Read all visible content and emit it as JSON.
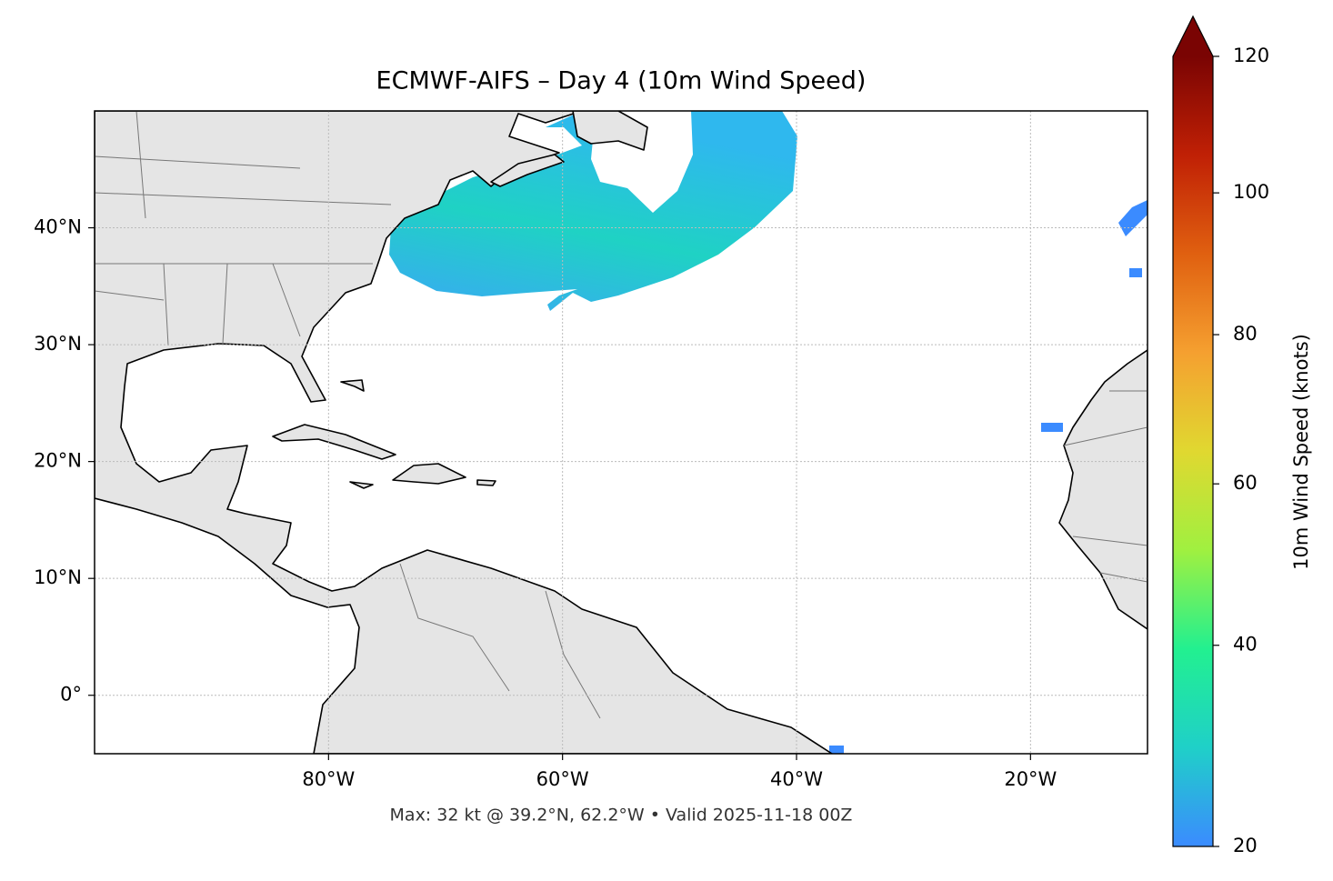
{
  "title": "ECMWF-AIFS – Day 4 (10m Wind Speed)",
  "map": {
    "lonlim": [
      -100,
      -10
    ],
    "latlim": [
      -5,
      50
    ],
    "lon_ticks": [
      {
        "value": -80,
        "label": "80°W"
      },
      {
        "value": -60,
        "label": "60°W"
      },
      {
        "value": -40,
        "label": "40°W"
      },
      {
        "value": -20,
        "label": "20°W"
      }
    ],
    "lat_ticks": [
      {
        "value": 0,
        "label": "0°"
      },
      {
        "value": 10,
        "label": "10°N"
      },
      {
        "value": 20,
        "label": "20°N"
      },
      {
        "value": 30,
        "label": "30°N"
      },
      {
        "value": 40,
        "label": "40°N"
      }
    ],
    "grid": true
  },
  "colorbar": {
    "label": "10m Wind Speed (knots)",
    "lim": [
      20,
      120
    ],
    "ticks": [
      20,
      40,
      60,
      80,
      100,
      120
    ],
    "norm_gamma": 0.85,
    "colors": [
      "#3b8bff",
      "#1fd0c8",
      "#22f090",
      "#a0f040",
      "#e0d830",
      "#f5a030",
      "#e06010",
      "#c02005",
      "#7a0403"
    ]
  },
  "footer": "Max: 32 kt @ 39.2°N, 62.2°W • Valid 2025-11-18 00Z"
}
